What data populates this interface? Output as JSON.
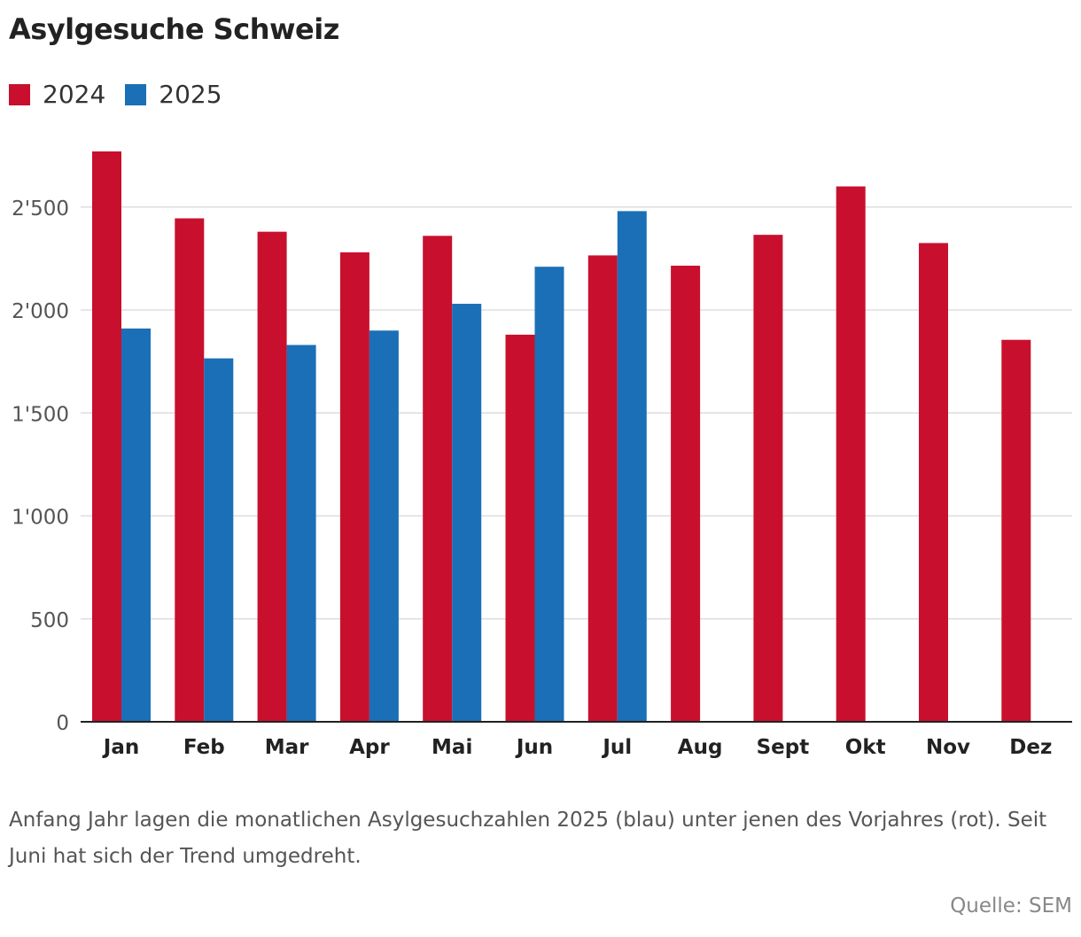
{
  "title": "Asylgesuche Schweiz",
  "caption": "Anfang Jahr lagen die monatlichen Asylgesuchzahlen 2025 (blau) unter jenen des Vorjahres (rot). Seit Juni hat sich der Trend umgedreht.",
  "source": "Quelle: SEM",
  "colors": {
    "series_2024": "#c8102e",
    "series_2025": "#1b6fb6",
    "grid": "#dddddd",
    "axis": "#222222"
  },
  "chart_data": {
    "type": "bar",
    "title": "Asylgesuche Schweiz",
    "xlabel": "",
    "ylabel": "",
    "categories": [
      "Jan",
      "Feb",
      "Mar",
      "Apr",
      "Mai",
      "Jun",
      "Jul",
      "Aug",
      "Sept",
      "Okt",
      "Nov",
      "Dez"
    ],
    "series": [
      {
        "name": "2024",
        "color": "#c8102e",
        "values": [
          2770,
          2445,
          2380,
          2280,
          2360,
          1880,
          2265,
          2215,
          2365,
          2600,
          2325,
          1855
        ]
      },
      {
        "name": "2025",
        "color": "#1b6fb6",
        "values": [
          1910,
          1765,
          1830,
          1900,
          2030,
          2210,
          2480,
          null,
          null,
          null,
          null,
          null
        ]
      }
    ],
    "ylim": [
      0,
      2800
    ],
    "yticks": [
      0,
      500,
      1000,
      1500,
      2000,
      2500
    ],
    "ytick_labels": [
      "0",
      "500",
      "1'000",
      "1'500",
      "2'000",
      "2'500"
    ],
    "grid": true,
    "legend": "top-left"
  }
}
